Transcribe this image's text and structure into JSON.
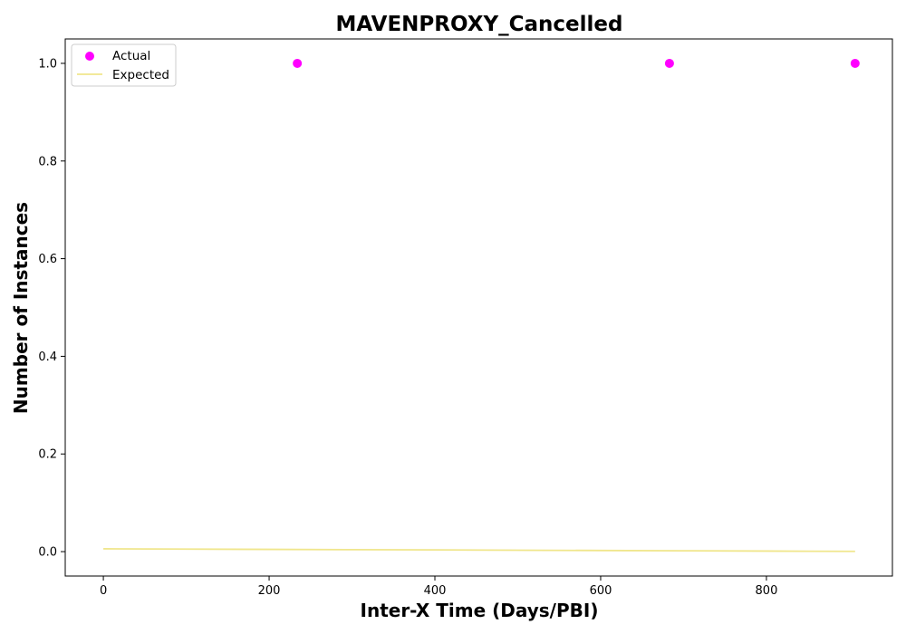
{
  "chart_data": {
    "type": "scatter",
    "title": "MAVENPROXY_Cancelled",
    "xlabel": "Inter-X Time (Days/PBI)",
    "ylabel": "Number of Instances",
    "xlim": [
      -46,
      952
    ],
    "ylim": [
      -0.05,
      1.05
    ],
    "x_ticks": [
      0,
      200,
      400,
      600,
      800
    ],
    "y_ticks": [
      0.0,
      0.2,
      0.4,
      0.6,
      0.8,
      1.0
    ],
    "x_tick_labels": [
      "0",
      "200",
      "400",
      "600",
      "800"
    ],
    "y_tick_labels": [
      "0.0",
      "0.2",
      "0.4",
      "0.6",
      "0.8",
      "1.0"
    ],
    "grid": false,
    "legend_position": "top-left",
    "series": [
      {
        "name": "Actual",
        "kind": "scatter",
        "color": "#ff00ff",
        "x": [
          234,
          683,
          907
        ],
        "y": [
          1.0,
          1.0,
          1.0
        ]
      },
      {
        "name": "Expected",
        "kind": "line",
        "color": "#f0e68c",
        "x": [
          0,
          100,
          200,
          300,
          400,
          500,
          600,
          700,
          800,
          907
        ],
        "y": [
          0.0058,
          0.0052,
          0.0046,
          0.004,
          0.0035,
          0.0029,
          0.0023,
          0.0017,
          0.0011,
          0.0005
        ]
      }
    ]
  }
}
